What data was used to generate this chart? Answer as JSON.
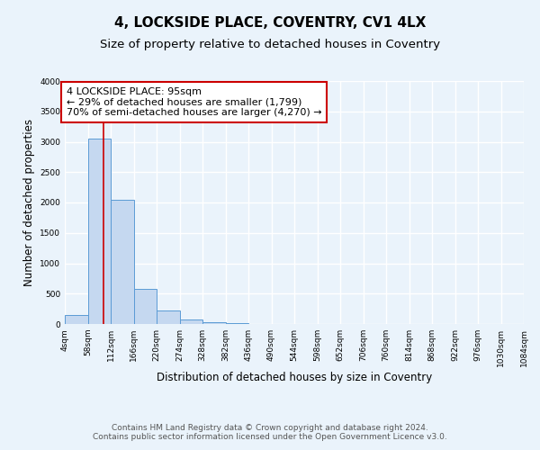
{
  "title": "4, LOCKSIDE PLACE, COVENTRY, CV1 4LX",
  "subtitle": "Size of property relative to detached houses in Coventry",
  "xlabel": "Distribution of detached houses by size in Coventry",
  "ylabel": "Number of detached properties",
  "bins": [
    4,
    58,
    112,
    166,
    220,
    274,
    328,
    382,
    436,
    490,
    544,
    598,
    652,
    706,
    760,
    814,
    868,
    922,
    976,
    1030,
    1084
  ],
  "bar_heights": [
    150,
    3050,
    2050,
    575,
    225,
    75,
    25,
    10,
    5,
    3,
    2,
    1,
    1,
    0,
    0,
    0,
    0,
    0,
    0,
    0
  ],
  "bar_color": "#c5d8f0",
  "bar_edge_color": "#5b9bd5",
  "background_color": "#eaf3fb",
  "grid_color": "#ffffff",
  "property_size": 95,
  "red_line_color": "#cc0000",
  "annotation_text": "4 LOCKSIDE PLACE: 95sqm\n← 29% of detached houses are smaller (1,799)\n70% of semi-detached houses are larger (4,270) →",
  "annotation_box_color": "#cc0000",
  "ylim": [
    0,
    4000
  ],
  "yticks": [
    0,
    500,
    1000,
    1500,
    2000,
    2500,
    3000,
    3500,
    4000
  ],
  "footer_line1": "Contains HM Land Registry data © Crown copyright and database right 2024.",
  "footer_line2": "Contains public sector information licensed under the Open Government Licence v3.0.",
  "title_fontsize": 11,
  "subtitle_fontsize": 9.5,
  "annot_fontsize": 8,
  "footer_fontsize": 6.5,
  "tick_fontsize": 6.5,
  "ylabel_fontsize": 8.5,
  "xlabel_fontsize": 8.5
}
